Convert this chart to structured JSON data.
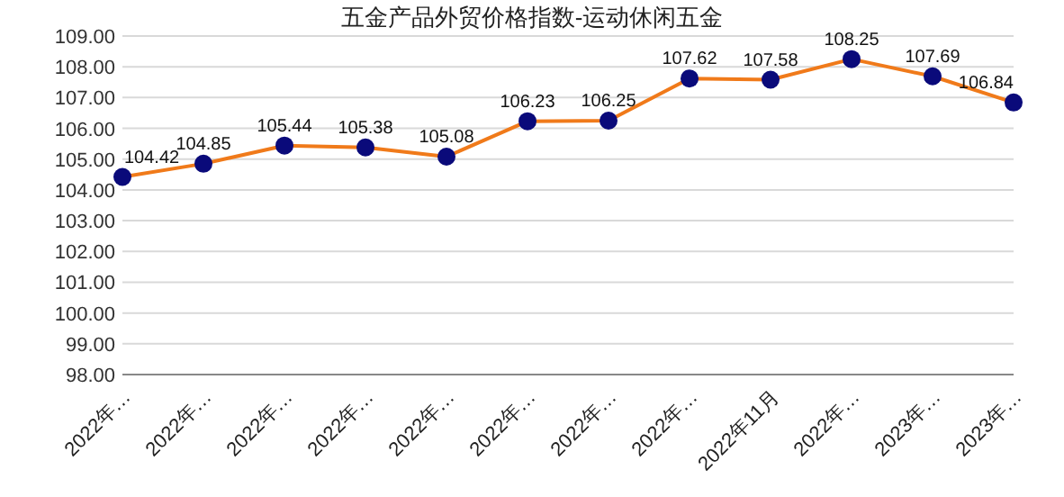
{
  "chart_data": {
    "type": "line",
    "title": "五金产品外贸价格指数-运动休闲五金",
    "categories": [
      "2022年…",
      "2022年…",
      "2022年…",
      "2022年…",
      "2022年…",
      "2022年…",
      "2022年…",
      "2022年…",
      "2022年11月",
      "2022年…",
      "2023年…",
      "2023年…"
    ],
    "series": [
      {
        "color": "#f07a1a",
        "colors": [
          "#0a0a7a",
          "#0a0a7a",
          "#0a0a7a",
          "#0a0a7a",
          "#0a0a7a",
          "#0a0a7a",
          "#0a0a7a",
          "#0a0a7a",
          "#0a0a7a",
          "#0a0a7a",
          "#0a0a7a",
          "#0a0a7a"
        ],
        "values": [
          104.42,
          104.85,
          105.44,
          105.38,
          105.08,
          106.23,
          106.25,
          107.62,
          107.58,
          108.25,
          107.69,
          106.84
        ]
      }
    ],
    "ylim": [
      98,
      109
    ],
    "yticks": [
      {
        "value": 98,
        "label": "98.00"
      },
      {
        "value": 99,
        "label": "99.00"
      },
      {
        "value": 100,
        "label": "100.00"
      },
      {
        "value": 101,
        "label": "101.00"
      },
      {
        "value": 102,
        "label": "102.00"
      },
      {
        "value": 103,
        "label": "103.00"
      },
      {
        "value": 104,
        "label": "104.00"
      },
      {
        "value": 105,
        "label": "105.00"
      },
      {
        "value": 106,
        "label": "106.00"
      },
      {
        "value": 107,
        "label": "107.00"
      },
      {
        "value": 108,
        "label": "108.00"
      },
      {
        "value": 109,
        "label": "109.00"
      }
    ],
    "grid": "y",
    "marker": "circle",
    "data_labels": true
  }
}
